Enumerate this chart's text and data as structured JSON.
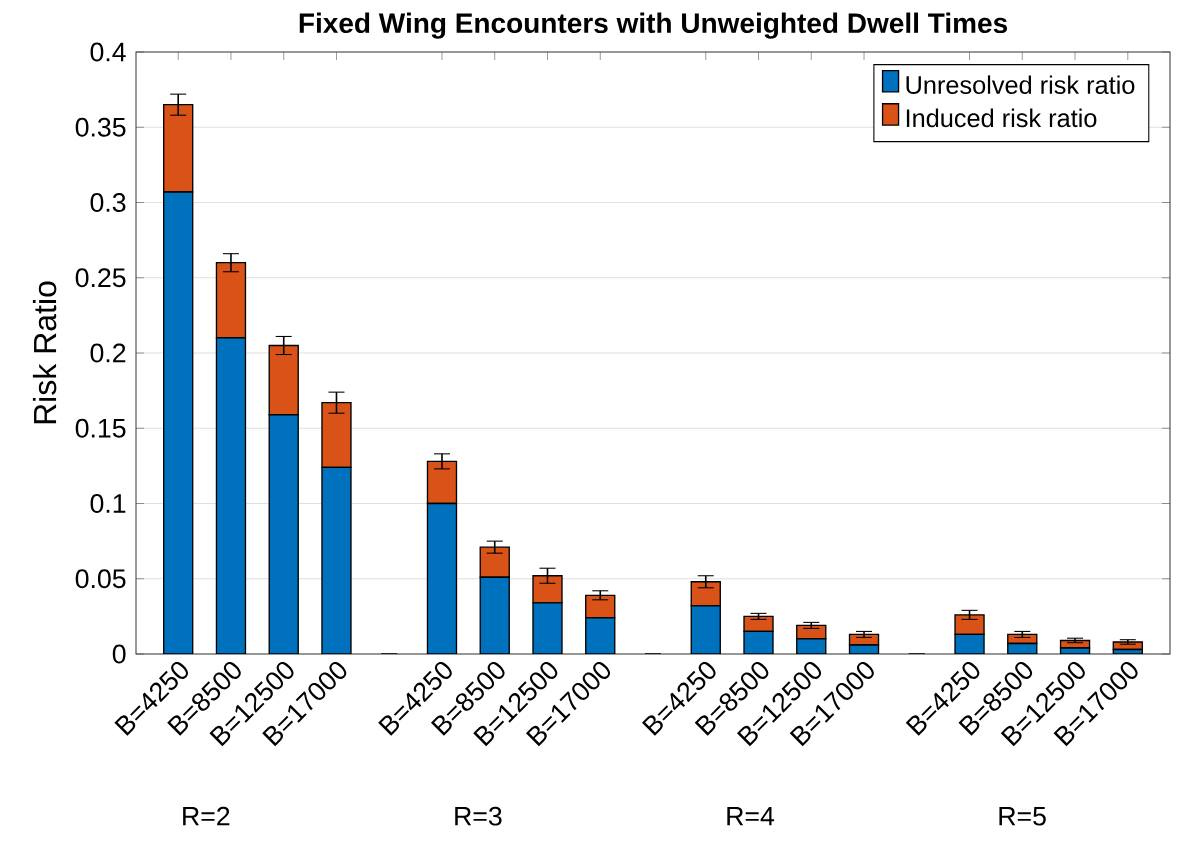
{
  "chart_data": {
    "type": "bar",
    "title": "Fixed Wing Encounters with Unweighted Dwell Times",
    "ylabel": "Risk Ratio",
    "categories": [
      "B=4250",
      "B=8500",
      "B=12500",
      "B=17000",
      null,
      "B=4250",
      "B=8500",
      "B=12500",
      "B=17000",
      null,
      "B=4250",
      "B=8500",
      "B=12500",
      "B=17000",
      null,
      "B=4250",
      "B=8500",
      "B=12500",
      "B=17000"
    ],
    "stacked": true,
    "series": [
      {
        "name": "Unresolved risk ratio",
        "color": "#0072bd",
        "values": [
          0.307,
          0.21,
          0.159,
          0.124,
          0,
          0.1,
          0.051,
          0.034,
          0.024,
          0,
          0.032,
          0.015,
          0.01,
          0.006,
          0,
          0.013,
          0.007,
          0.004,
          0.003
        ]
      },
      {
        "name": "Induced risk ratio",
        "color": "#d95319",
        "values": [
          0.058,
          0.05,
          0.046,
          0.043,
          0,
          0.028,
          0.02,
          0.018,
          0.015,
          0,
          0.016,
          0.01,
          0.009,
          0.007,
          0,
          0.013,
          0.006,
          0.005,
          0.005
        ],
        "errors": [
          0.007,
          0.006,
          0.006,
          0.007,
          null,
          0.005,
          0.004,
          0.005,
          0.003,
          null,
          0.004,
          0.002,
          0.002,
          0.002,
          null,
          0.003,
          0.002,
          0.0015,
          0.0015
        ]
      }
    ],
    "ylim": [
      0,
      0.4
    ],
    "yticks": [
      0,
      0.05,
      0.1,
      0.15,
      0.2,
      0.25,
      0.3,
      0.35,
      0.4
    ],
    "grid": "y",
    "legend": "top right",
    "annotations": [
      "R=2",
      "R=3",
      "R=4",
      "R=5"
    ]
  }
}
